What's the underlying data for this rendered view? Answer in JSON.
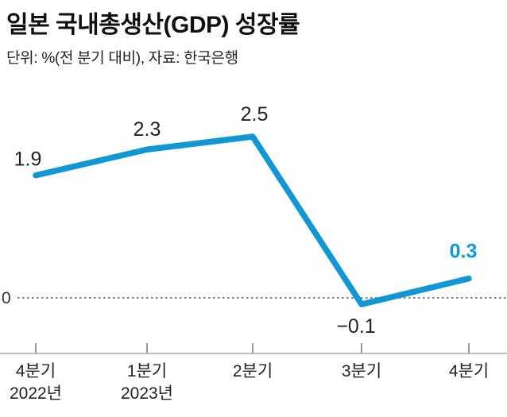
{
  "header": {
    "title": "일본 국내총생산(GDP) 성장률",
    "subtitle": "단위: %(전 분기 대비), 자료: 한국은행"
  },
  "chart_data": {
    "type": "line",
    "title": "일본 국내총생산(GDP) 성장률",
    "unit_note": "단위: %(전 분기 대비)",
    "source": "자료: 한국은행",
    "categories": [
      "4분기",
      "1분기",
      "2분기",
      "3분기",
      "4분기"
    ],
    "category_sublabels": [
      "2022년",
      "2023년",
      "",
      "",
      ""
    ],
    "values": [
      1.9,
      2.3,
      2.5,
      -0.1,
      0.3
    ],
    "value_labels": [
      "1.9",
      "2.3",
      "2.5",
      "−0.1",
      "0.3"
    ],
    "highlight_index": 4,
    "zero_label": "0",
    "ylim": [
      -0.8,
      3.2
    ],
    "grid": "zero-line-dashed-only",
    "legend": "none",
    "colors": {
      "line": "#1097d4",
      "highlight_label": "#0a9bd8",
      "value_label": "#222222",
      "axis": "#aaaaaa",
      "tick": "#999999",
      "tick_label": "#222222",
      "zero_line": "#555555",
      "zero_label": "#333333"
    }
  }
}
